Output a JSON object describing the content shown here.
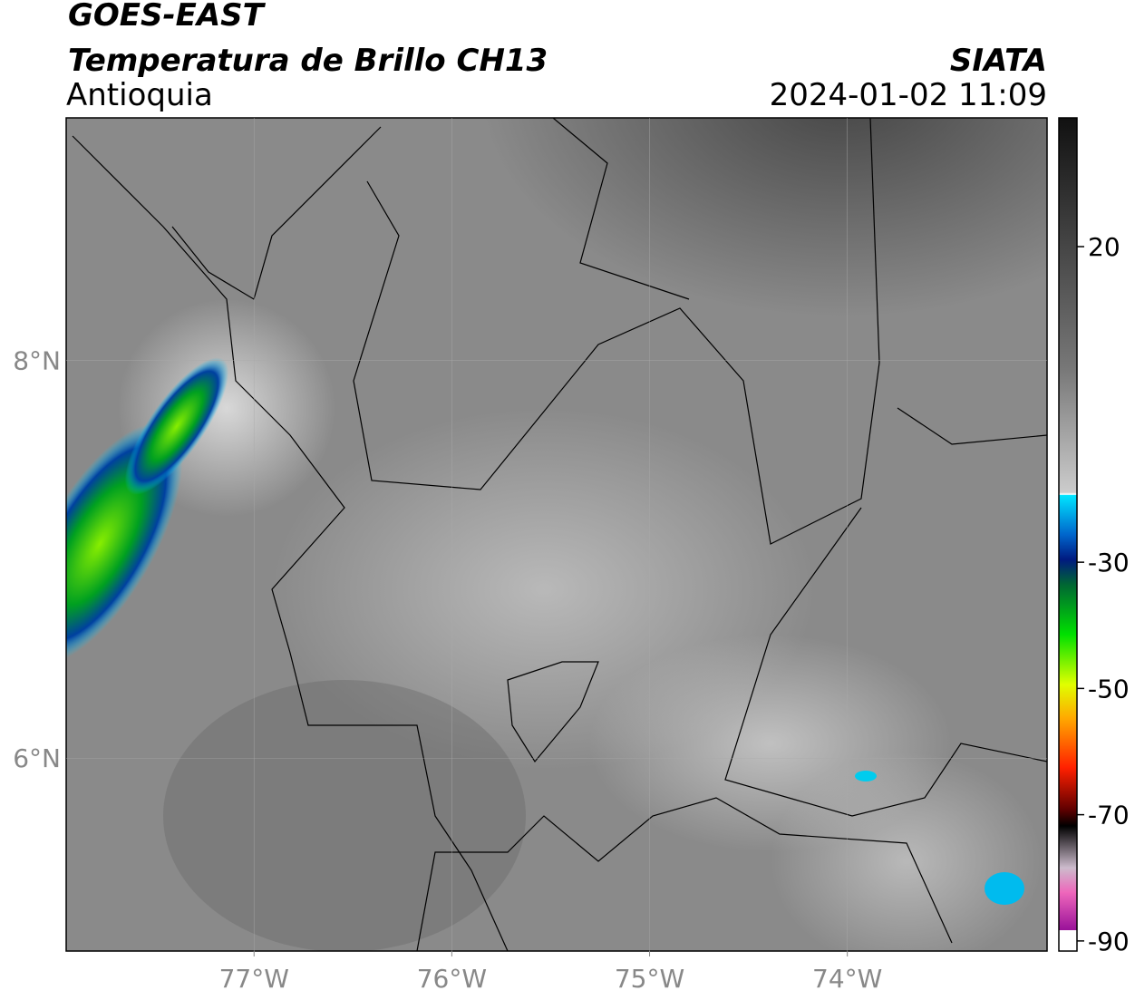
{
  "header": {
    "line1": "GOES-EAST",
    "line2": "Temperatura de Brillo CH13",
    "region": "Antioquia",
    "source": "SIATA",
    "datetime": "2024-01-02 11:09"
  },
  "map": {
    "xlim": [
      -77.95,
      -72.99
    ],
    "ylim": [
      5.03,
      9.22
    ],
    "xticks": [
      {
        "value": -77,
        "label": "77°W"
      },
      {
        "value": -76,
        "label": "76°W"
      },
      {
        "value": -75,
        "label": "75°W"
      },
      {
        "value": -74,
        "label": "74°W"
      }
    ],
    "yticks": [
      {
        "value": 8,
        "label": "8°N"
      },
      {
        "value": 6,
        "label": "6°N"
      }
    ],
    "grid": true
  },
  "colorbar": {
    "lim": [
      -91.6,
      40.4
    ],
    "ticks": [
      20,
      -30,
      -50,
      -70,
      -90
    ]
  }
}
